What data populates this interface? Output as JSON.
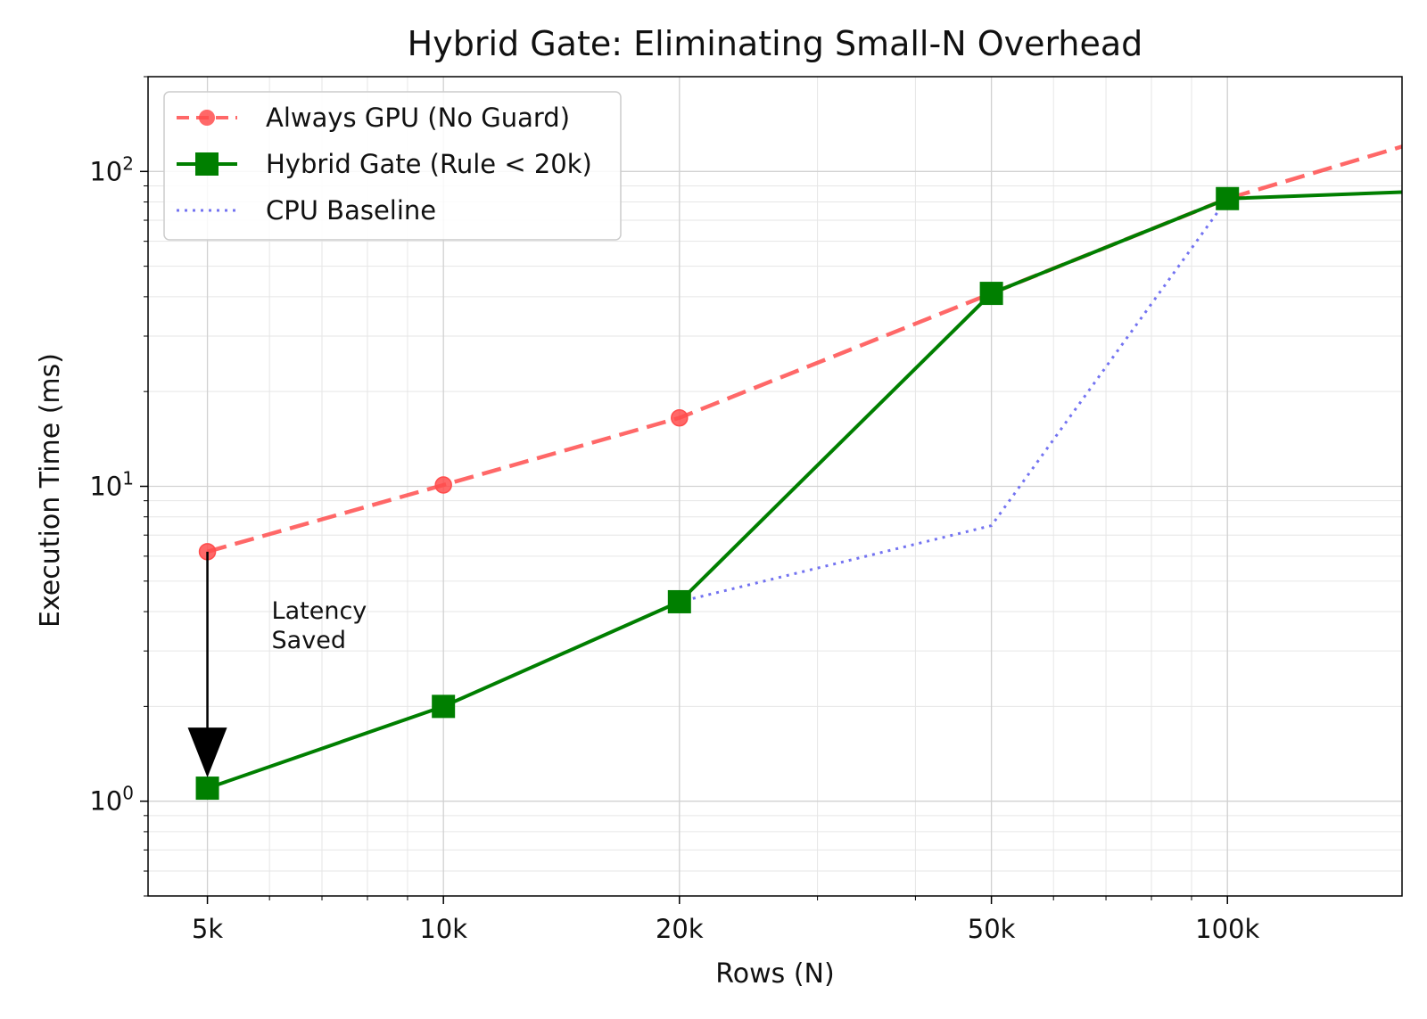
{
  "chart_data": {
    "type": "line",
    "title": "Hybrid Gate: Eliminating Small-N Overhead",
    "xlabel": "Rows (N)",
    "ylabel": "Execution Time (ms)",
    "xscale": "log",
    "yscale": "log",
    "xlim": [
      4200,
      167000
    ],
    "ylim": [
      0.5,
      200
    ],
    "grid": true,
    "legend_position": "top-left",
    "x_ticks": [
      {
        "value": 5000,
        "label": "5k"
      },
      {
        "value": 10000,
        "label": "10k"
      },
      {
        "value": 20000,
        "label": "20k"
      },
      {
        "value": 50000,
        "label": "50k"
      },
      {
        "value": 100000,
        "label": "100k"
      }
    ],
    "y_ticks": [
      {
        "value": 1,
        "base": "10",
        "exp": "0"
      },
      {
        "value": 10,
        "base": "10",
        "exp": "1"
      },
      {
        "value": 100,
        "base": "10",
        "exp": "2"
      }
    ],
    "series": [
      {
        "name": "Always GPU (No Guard)",
        "color": "#ff4d4d",
        "style": "dashed",
        "marker": "circle",
        "x": [
          5000,
          10000,
          20000,
          50000,
          100000,
          167000
        ],
        "y": [
          6.2,
          10.1,
          16.5,
          41,
          82,
          120
        ],
        "markers_on": [
          0,
          1,
          2
        ]
      },
      {
        "name": "Hybrid Gate (Rule < 20k)",
        "color": "#007f00",
        "style": "solid",
        "marker": "square",
        "x": [
          5000,
          10000,
          20000,
          50000,
          100000,
          167000
        ],
        "y": [
          1.1,
          2.0,
          4.3,
          41,
          82,
          86
        ],
        "markers_on": [
          0,
          1,
          2,
          3,
          4
        ]
      },
      {
        "name": "CPU Baseline",
        "color": "#6b6bf0",
        "style": "dotted",
        "marker": "none",
        "x": [
          5000,
          10000,
          20000,
          50000,
          100000,
          167000
        ],
        "y": [
          1.1,
          2.0,
          4.3,
          7.5,
          82,
          86
        ],
        "markers_on": []
      }
    ],
    "annotation": {
      "line1": "Latency",
      "line2": "Saved",
      "arrow_from": {
        "x": 5000,
        "y": 6.2
      },
      "arrow_to": {
        "x": 5000,
        "y": 1.1
      }
    }
  }
}
